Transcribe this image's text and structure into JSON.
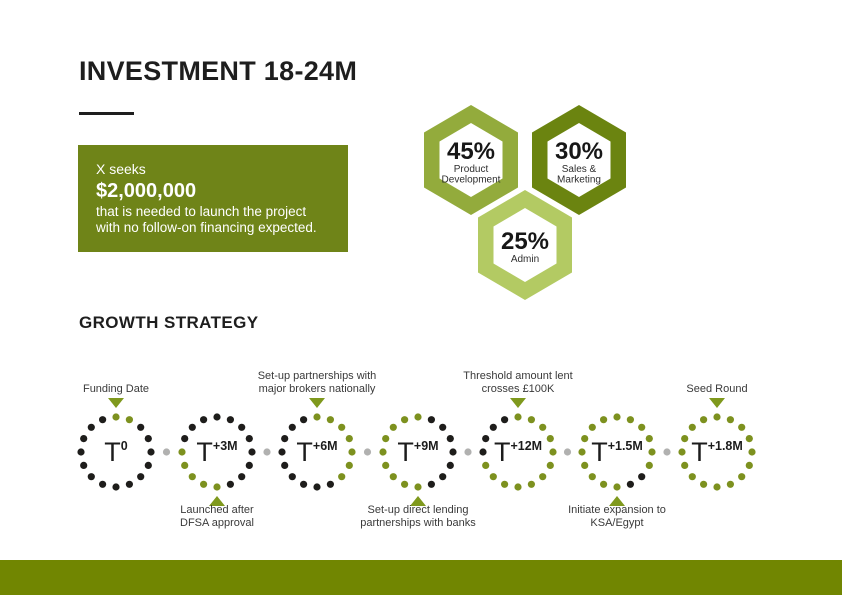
{
  "title": "INVESTMENT 18-24M",
  "investment_box": {
    "intro": "X seeks",
    "amount": "$2,000,000",
    "line1": "that is needed to launch the project",
    "line2": "with no follow-on financing expected."
  },
  "allocation": [
    {
      "pct": "45%",
      "lines": [
        "Product",
        "Development"
      ],
      "color": "#93ab3c"
    },
    {
      "pct": "30%",
      "lines": [
        "Sales &",
        "Marketing"
      ],
      "color": "#6b8410"
    },
    {
      "pct": "25%",
      "lines": [
        "Admin"
      ],
      "color": "#b3ca63"
    }
  ],
  "growth": {
    "heading": "GROWTH STRATEGY",
    "milestones": [
      {
        "base": "T",
        "sup": "0",
        "label_lines": [
          "Funding Date"
        ],
        "label_pos": "top",
        "green_dots": [
          0,
          1
        ]
      },
      {
        "base": "T",
        "sup": "+3M",
        "label_lines": [
          "Launched after",
          "DFSA approval"
        ],
        "label_pos": "bottom",
        "green_dots": [
          8,
          9,
          10,
          11,
          12
        ]
      },
      {
        "base": "T",
        "sup": "+6M",
        "label_lines": [
          "Set-up partnerships with",
          "major brokers nationally"
        ],
        "label_pos": "top",
        "green_dots": [
          0,
          1,
          2,
          3,
          4,
          5,
          6
        ]
      },
      {
        "base": "T",
        "sup": "+9M",
        "label_lines": [
          "Set-up direct lending",
          "partnerships with banks"
        ],
        "label_pos": "bottom",
        "green_dots": [
          0,
          8,
          9,
          10,
          11,
          12,
          13,
          14,
          15
        ]
      },
      {
        "base": "T",
        "sup": "+12M",
        "label_lines": [
          "Threshold amount lent",
          "crosses £100K"
        ],
        "label_pos": "top",
        "green_dots": [
          0,
          1,
          2,
          3,
          4,
          5,
          6,
          7,
          8,
          9,
          10,
          11
        ]
      },
      {
        "base": "T",
        "sup": "+1.5M",
        "label_lines": [
          "Initiate expansion to",
          "KSA/Egypt"
        ],
        "label_pos": "bottom",
        "green_dots": [
          0,
          1,
          2,
          3,
          4,
          5,
          8,
          9,
          10,
          11,
          12,
          13,
          14,
          15
        ]
      },
      {
        "base": "T",
        "sup": "+1.8M",
        "label_lines": [
          "Seed Round"
        ],
        "label_pos": "top",
        "green_dots": [
          0,
          1,
          2,
          3,
          4,
          5,
          6,
          7,
          8,
          9,
          10,
          11,
          12,
          13,
          14,
          15
        ]
      }
    ],
    "dots_per_circle": 16
  },
  "colors": {
    "accent_olive": "#6f8418",
    "footer_green": "#718601",
    "dot_green": "#7d911f",
    "dot_black": "#1e1d1b",
    "dot_gray": "#b1b1b0",
    "marker_green": "#7f991d"
  }
}
